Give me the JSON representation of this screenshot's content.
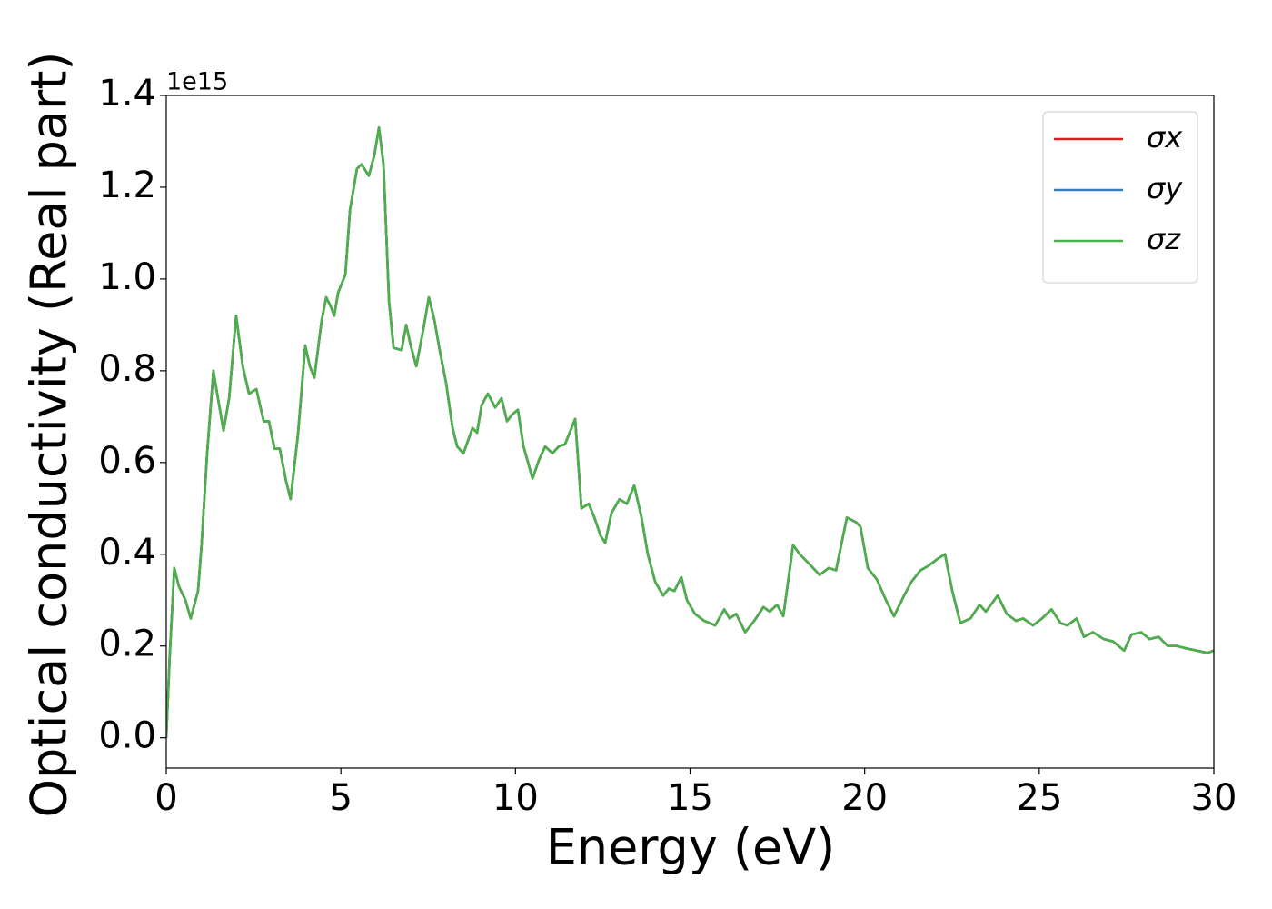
{
  "chart_data": {
    "type": "line",
    "x_label": "Energy (eV)",
    "y_label": "Optical conductivity (Real part)",
    "y_offset_label": "1e15",
    "x": [
      0,
      0.1,
      0.23,
      0.36,
      0.55,
      0.7,
      0.91,
      1.01,
      1.17,
      1.35,
      1.48,
      1.64,
      1.8,
      2.0,
      2.19,
      2.37,
      2.58,
      2.79,
      2.94,
      3.1,
      3.25,
      3.43,
      3.56,
      3.77,
      3.98,
      4.11,
      4.24,
      4.45,
      4.58,
      4.71,
      4.81,
      4.92,
      5.13,
      5.26,
      5.46,
      5.59,
      5.8,
      5.96,
      6.09,
      6.22,
      6.38,
      6.51,
      6.74,
      6.87,
      7.0,
      7.16,
      7.36,
      7.52,
      7.68,
      7.83,
      8.01,
      8.2,
      8.33,
      8.51,
      8.77,
      8.9,
      9.03,
      9.21,
      9.42,
      9.6,
      9.76,
      9.91,
      10.07,
      10.23,
      10.49,
      10.67,
      10.85,
      11.06,
      11.24,
      11.42,
      11.71,
      11.89,
      12.1,
      12.26,
      12.44,
      12.57,
      12.75,
      12.98,
      13.19,
      13.4,
      13.61,
      13.79,
      14.0,
      14.23,
      14.39,
      14.55,
      14.75,
      14.91,
      15.14,
      15.4,
      15.72,
      15.98,
      16.13,
      16.32,
      16.58,
      16.84,
      17.1,
      17.28,
      17.49,
      17.67,
      17.95,
      18.14,
      18.4,
      18.71,
      18.97,
      19.18,
      19.49,
      19.75,
      19.88,
      20.09,
      20.35,
      20.61,
      20.84,
      21.13,
      21.34,
      21.6,
      21.83,
      22.09,
      22.3,
      22.51,
      22.74,
      23.03,
      23.29,
      23.47,
      23.81,
      24.07,
      24.33,
      24.54,
      24.82,
      25.08,
      25.35,
      25.61,
      25.81,
      26.07,
      26.28,
      26.54,
      26.85,
      27.11,
      27.43,
      27.64,
      27.92,
      28.16,
      28.42,
      28.68,
      28.94,
      29.2,
      29.82,
      30.0
    ],
    "series": [
      {
        "name": "σx",
        "color": "#e41a1c",
        "values": [
          0,
          0.18,
          0.37,
          0.33,
          0.3,
          0.26,
          0.32,
          0.42,
          0.62,
          0.8,
          0.74,
          0.67,
          0.74,
          0.92,
          0.81,
          0.75,
          0.76,
          0.69,
          0.69,
          0.63,
          0.63,
          0.56,
          0.52,
          0.66,
          0.855,
          0.81,
          0.785,
          0.91,
          0.96,
          0.94,
          0.92,
          0.97,
          1.01,
          1.15,
          1.24,
          1.25,
          1.225,
          1.27,
          1.33,
          1.25,
          0.95,
          0.85,
          0.845,
          0.9,
          0.855,
          0.81,
          0.89,
          0.96,
          0.91,
          0.845,
          0.775,
          0.675,
          0.635,
          0.62,
          0.675,
          0.665,
          0.725,
          0.75,
          0.72,
          0.74,
          0.69,
          0.705,
          0.715,
          0.635,
          0.565,
          0.605,
          0.635,
          0.62,
          0.635,
          0.64,
          0.695,
          0.5,
          0.51,
          0.48,
          0.44,
          0.425,
          0.49,
          0.52,
          0.51,
          0.55,
          0.48,
          0.4,
          0.34,
          0.31,
          0.325,
          0.32,
          0.35,
          0.3,
          0.27,
          0.255,
          0.245,
          0.28,
          0.26,
          0.27,
          0.23,
          0.255,
          0.285,
          0.275,
          0.29,
          0.265,
          0.42,
          0.4,
          0.38,
          0.355,
          0.37,
          0.365,
          0.48,
          0.47,
          0.46,
          0.37,
          0.345,
          0.3,
          0.265,
          0.31,
          0.34,
          0.365,
          0.375,
          0.39,
          0.4,
          0.32,
          0.25,
          0.26,
          0.29,
          0.275,
          0.31,
          0.27,
          0.255,
          0.26,
          0.245,
          0.26,
          0.28,
          0.25,
          0.245,
          0.26,
          0.22,
          0.23,
          0.215,
          0.21,
          0.19,
          0.225,
          0.23,
          0.215,
          0.22,
          0.2,
          0.2,
          0.195,
          0.185,
          0.19
        ]
      },
      {
        "name": "σy",
        "color": "#377eb8",
        "values": [
          0,
          0.18,
          0.37,
          0.33,
          0.3,
          0.26,
          0.32,
          0.42,
          0.62,
          0.8,
          0.74,
          0.67,
          0.74,
          0.92,
          0.81,
          0.75,
          0.76,
          0.69,
          0.69,
          0.63,
          0.63,
          0.56,
          0.52,
          0.66,
          0.855,
          0.81,
          0.785,
          0.91,
          0.96,
          0.94,
          0.92,
          0.97,
          1.01,
          1.15,
          1.24,
          1.25,
          1.225,
          1.27,
          1.33,
          1.25,
          0.95,
          0.85,
          0.845,
          0.9,
          0.855,
          0.81,
          0.89,
          0.96,
          0.91,
          0.845,
          0.775,
          0.675,
          0.635,
          0.62,
          0.675,
          0.665,
          0.725,
          0.75,
          0.72,
          0.74,
          0.69,
          0.705,
          0.715,
          0.635,
          0.565,
          0.605,
          0.635,
          0.62,
          0.635,
          0.64,
          0.695,
          0.5,
          0.51,
          0.48,
          0.44,
          0.425,
          0.49,
          0.52,
          0.51,
          0.55,
          0.48,
          0.4,
          0.34,
          0.31,
          0.325,
          0.32,
          0.35,
          0.3,
          0.27,
          0.255,
          0.245,
          0.28,
          0.26,
          0.27,
          0.23,
          0.255,
          0.285,
          0.275,
          0.29,
          0.265,
          0.42,
          0.4,
          0.38,
          0.355,
          0.37,
          0.365,
          0.48,
          0.47,
          0.46,
          0.37,
          0.345,
          0.3,
          0.265,
          0.31,
          0.34,
          0.365,
          0.375,
          0.39,
          0.4,
          0.32,
          0.25,
          0.26,
          0.29,
          0.275,
          0.31,
          0.27,
          0.255,
          0.26,
          0.245,
          0.26,
          0.28,
          0.25,
          0.245,
          0.26,
          0.22,
          0.23,
          0.215,
          0.21,
          0.19,
          0.225,
          0.23,
          0.215,
          0.22,
          0.2,
          0.2,
          0.195,
          0.185,
          0.19
        ]
      },
      {
        "name": "σz",
        "color": "#4daf4a",
        "values": [
          0,
          0.18,
          0.37,
          0.33,
          0.3,
          0.26,
          0.32,
          0.42,
          0.62,
          0.8,
          0.74,
          0.67,
          0.74,
          0.92,
          0.81,
          0.75,
          0.76,
          0.69,
          0.69,
          0.63,
          0.63,
          0.56,
          0.52,
          0.66,
          0.855,
          0.81,
          0.785,
          0.91,
          0.96,
          0.94,
          0.92,
          0.97,
          1.01,
          1.15,
          1.24,
          1.25,
          1.225,
          1.27,
          1.33,
          1.25,
          0.95,
          0.85,
          0.845,
          0.9,
          0.855,
          0.81,
          0.89,
          0.96,
          0.91,
          0.845,
          0.775,
          0.675,
          0.635,
          0.62,
          0.675,
          0.665,
          0.725,
          0.75,
          0.72,
          0.74,
          0.69,
          0.705,
          0.715,
          0.635,
          0.565,
          0.605,
          0.635,
          0.62,
          0.635,
          0.64,
          0.695,
          0.5,
          0.51,
          0.48,
          0.44,
          0.425,
          0.49,
          0.52,
          0.51,
          0.55,
          0.48,
          0.4,
          0.34,
          0.31,
          0.325,
          0.32,
          0.35,
          0.3,
          0.27,
          0.255,
          0.245,
          0.28,
          0.26,
          0.27,
          0.23,
          0.255,
          0.285,
          0.275,
          0.29,
          0.265,
          0.42,
          0.4,
          0.38,
          0.355,
          0.37,
          0.365,
          0.48,
          0.47,
          0.46,
          0.37,
          0.345,
          0.3,
          0.265,
          0.31,
          0.34,
          0.365,
          0.375,
          0.39,
          0.4,
          0.32,
          0.25,
          0.26,
          0.29,
          0.275,
          0.31,
          0.27,
          0.255,
          0.26,
          0.245,
          0.26,
          0.28,
          0.25,
          0.245,
          0.26,
          0.22,
          0.23,
          0.215,
          0.21,
          0.19,
          0.225,
          0.23,
          0.215,
          0.22,
          0.2,
          0.2,
          0.195,
          0.185,
          0.19
        ]
      }
    ],
    "xlim": [
      0,
      30
    ],
    "xticks": [
      0,
      5,
      10,
      15,
      20,
      25,
      30
    ],
    "ylim": [
      -0.066,
      1.4
    ],
    "yticks": [
      {
        "value": 0,
        "label": "0.0"
      },
      0.2,
      0.4,
      0.6,
      0.8,
      {
        "value": 1,
        "label": "1.0"
      },
      1.2,
      1.4
    ],
    "grid": false,
    "legend": "upper right"
  }
}
